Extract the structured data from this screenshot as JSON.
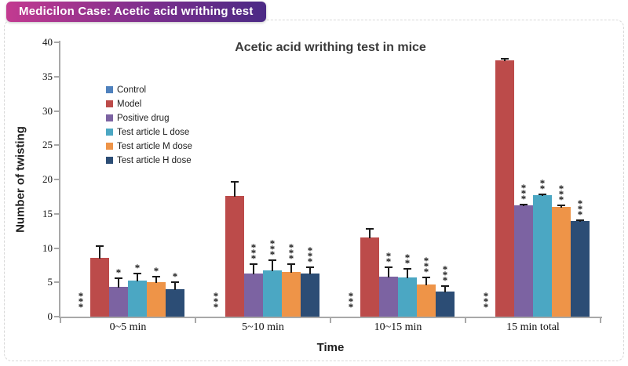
{
  "header": {
    "badge_text": "Medicilon Case: Acetic acid writhing test",
    "badge_gradient_left": "#c23a90",
    "badge_gradient_right": "#4b2a85",
    "badge_text_color": "#ffffff"
  },
  "frame": {
    "border_color": "#d8d8d8",
    "border_style": "dashed"
  },
  "chart_data": {
    "type": "bar",
    "title": "Acetic acid writhing test in mice",
    "xlabel": "Time",
    "ylabel": "Number of twisting",
    "ylim": [
      0,
      40
    ],
    "yticks": [
      0,
      5,
      10,
      15,
      20,
      25,
      30,
      35,
      40
    ],
    "grid": false,
    "error_bars": true,
    "legend_position": "inside-upper-left",
    "axis_color": "#a8a8a8",
    "categories": [
      "0~5 min",
      "5~10 min",
      "10~15 min",
      "15 min total"
    ],
    "series": [
      {
        "name": "Control",
        "color": "#4f81bd",
        "values": [
          0,
          0,
          0,
          0
        ],
        "errors": [
          0,
          0,
          0,
          0
        ],
        "significance": [
          "***",
          "***",
          "***",
          "***"
        ]
      },
      {
        "name": "Model",
        "color": "#bc4b4a",
        "values": [
          8.6,
          17.6,
          11.5,
          37.4
        ],
        "errors": [
          1.8,
          2.2,
          1.4,
          0.3
        ],
        "significance": [
          "",
          "",
          "",
          ""
        ]
      },
      {
        "name": "Positive drug",
        "color": "#7c63a2",
        "values": [
          4.3,
          6.3,
          5.8,
          16.2
        ],
        "errors": [
          1.4,
          1.5,
          1.5,
          0.3
        ],
        "significance": [
          "*",
          "***",
          "**",
          "***"
        ]
      },
      {
        "name": "Test article L dose",
        "color": "#4ba7c3",
        "values": [
          5.3,
          6.8,
          5.7,
          17.7
        ],
        "errors": [
          1.1,
          1.6,
          1.4,
          0.3
        ],
        "significance": [
          "*",
          "***",
          "**",
          "**"
        ]
      },
      {
        "name": "Test article M dose",
        "color": "#ee9448",
        "values": [
          5.0,
          6.5,
          4.7,
          16.0
        ],
        "errors": [
          0.9,
          1.3,
          1.1,
          0.3
        ],
        "significance": [
          "*",
          "***",
          "***",
          "***"
        ]
      },
      {
        "name": "Test article H dose",
        "color": "#2c4d75",
        "values": [
          4.0,
          6.3,
          3.7,
          13.9
        ],
        "errors": [
          1.1,
          1.0,
          0.9,
          0.3
        ],
        "significance": [
          "*",
          "***",
          "***",
          "***"
        ]
      }
    ]
  }
}
